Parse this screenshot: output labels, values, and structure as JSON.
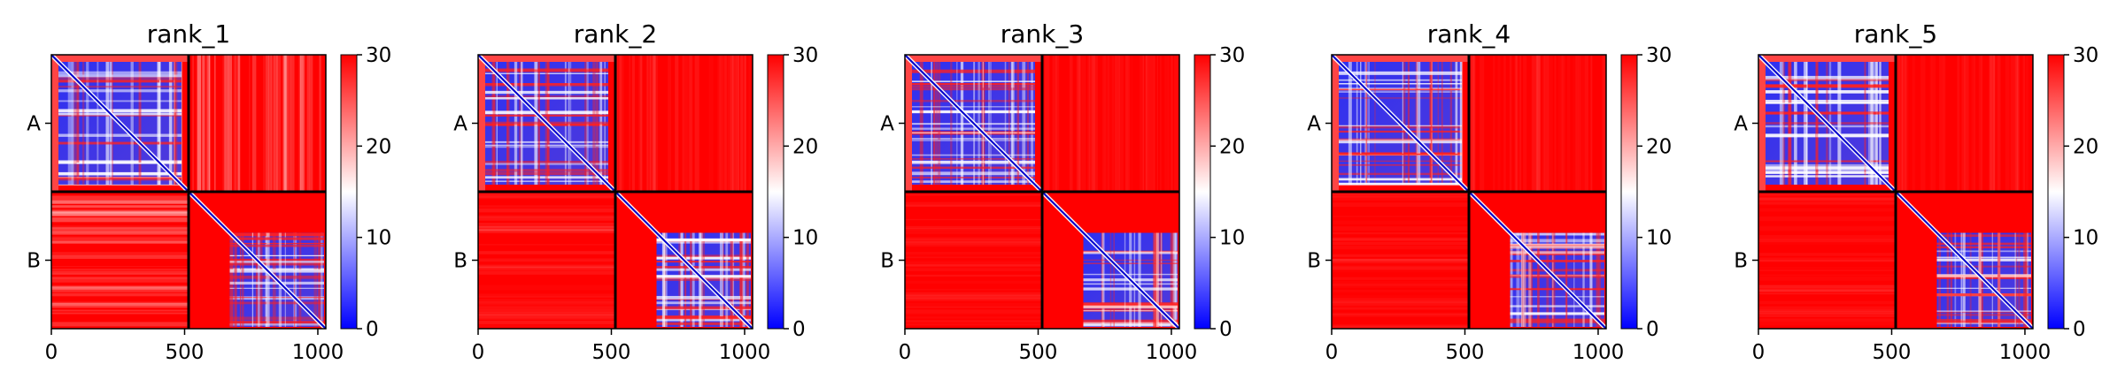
{
  "chart_data": [
    {
      "type": "heatmap",
      "title": "rank_1",
      "x_ticks": [
        0,
        500,
        1000
      ],
      "xlim": [
        0,
        1030
      ],
      "chain_labels": [
        "A",
        "B"
      ],
      "chain_boundary": 515,
      "colorbar": {
        "min": 0,
        "max": 30,
        "ticks": [
          0,
          10,
          20,
          30
        ],
        "colormap": "bwr"
      },
      "inter_chain_level": 0.9
    },
    {
      "type": "heatmap",
      "title": "rank_2",
      "x_ticks": [
        0,
        500,
        1000
      ],
      "xlim": [
        0,
        1030
      ],
      "chain_labels": [
        "A",
        "B"
      ],
      "chain_boundary": 515,
      "colorbar": {
        "min": 0,
        "max": 30,
        "ticks": [
          0,
          10,
          20,
          30
        ],
        "colormap": "bwr"
      },
      "inter_chain_level": 0.97
    },
    {
      "type": "heatmap",
      "title": "rank_3",
      "x_ticks": [
        0,
        500,
        1000
      ],
      "xlim": [
        0,
        1030
      ],
      "chain_labels": [
        "A",
        "B"
      ],
      "chain_boundary": 515,
      "colorbar": {
        "min": 0,
        "max": 30,
        "ticks": [
          0,
          10,
          20,
          30
        ],
        "colormap": "bwr"
      },
      "inter_chain_level": 0.98
    },
    {
      "type": "heatmap",
      "title": "rank_4",
      "x_ticks": [
        0,
        500,
        1000
      ],
      "xlim": [
        0,
        1030
      ],
      "chain_labels": [
        "A",
        "B"
      ],
      "chain_boundary": 515,
      "colorbar": {
        "min": 0,
        "max": 30,
        "ticks": [
          0,
          10,
          20,
          30
        ],
        "colormap": "bwr"
      },
      "inter_chain_level": 0.98
    },
    {
      "type": "heatmap",
      "title": "rank_5",
      "x_ticks": [
        0,
        500,
        1000
      ],
      "xlim": [
        0,
        1030
      ],
      "chain_labels": [
        "A",
        "B"
      ],
      "chain_boundary": 515,
      "colorbar": {
        "min": 0,
        "max": 30,
        "ticks": [
          0,
          10,
          20,
          30
        ],
        "colormap": "bwr"
      },
      "inter_chain_level": 0.98
    }
  ],
  "colors": {
    "low": "#0000ff",
    "mid": "#ffffff",
    "high": "#ff0000",
    "divider": "#000000"
  }
}
